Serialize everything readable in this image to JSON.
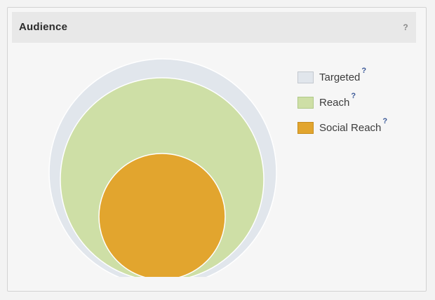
{
  "panel": {
    "title": "Audience",
    "help_label": "?"
  },
  "legend": [
    {
      "label": "Targeted",
      "help": "?",
      "color": "#e1e6ec",
      "border": "#c3c8cf",
      "icon": "targeted-swatch"
    },
    {
      "label": "Reach",
      "help": "?",
      "color": "#cedfa6",
      "border": "#b0c98a",
      "icon": "reach-swatch"
    },
    {
      "label": "Social Reach",
      "help": "?",
      "color": "#e2a52e",
      "border": "#c68c1e",
      "icon": "social-reach-swatch"
    }
  ],
  "colors": {
    "targeted_fill": "#e1e6ec",
    "reach_fill": "#cedfa6",
    "social_reach_fill": "#e2a52e",
    "help_link": "#3b5998"
  }
}
